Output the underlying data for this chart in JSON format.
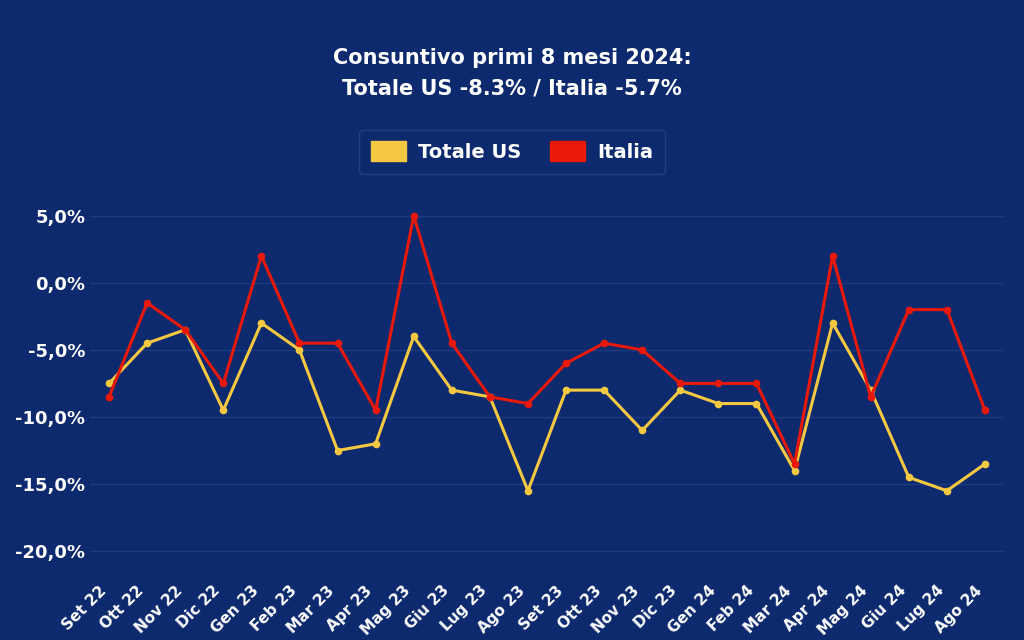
{
  "categories": [
    "Set 22",
    "Ott 22",
    "Nov 22",
    "Dic 22",
    "Gen 23",
    "Feb 23",
    "Mar 23",
    "Apr 23",
    "Mag 23",
    "Giu 23",
    "Lug 23",
    "Ago 23",
    "Set 23",
    "Ott 23",
    "Nov 23",
    "Dic 23",
    "Gen 24",
    "Feb 24",
    "Mar 24",
    "Apr 24",
    "Mag 24",
    "Giu 24",
    "Lug 24",
    "Ago 24"
  ],
  "totale_us": [
    -7.5,
    -4.5,
    -3.5,
    -9.5,
    -3.0,
    -5.0,
    -12.5,
    -12.0,
    -4.0,
    -8.0,
    -8.5,
    -15.5,
    -8.0,
    -8.0,
    -11.0,
    -8.0,
    -9.0,
    -9.0,
    -14.0,
    -3.0,
    -8.0,
    -14.5,
    -15.5,
    -13.5
  ],
  "italia": [
    -8.5,
    -1.5,
    -3.5,
    -7.5,
    2.0,
    -4.5,
    -4.5,
    -9.5,
    5.0,
    -4.5,
    -8.5,
    -9.0,
    -6.0,
    -4.5,
    -5.0,
    -7.5,
    -7.5,
    -7.5,
    -13.5,
    2.0,
    -8.5,
    -2.0,
    -2.0,
    -9.5
  ],
  "bg_color": "#0e2a6e",
  "line_color_us": "#F5C842",
  "line_color_it": "#E8190A",
  "grid_color": "#1e3a7e",
  "text_color": "#ffffff",
  "subtitle_line1": "Consuntivo primi 8 mesi 2024:",
  "subtitle_line2": "Totale US -8.3% / Italia -5.7%",
  "legend_us": "Totale US",
  "legend_it": "Italia",
  "ylim": [
    -22,
    9
  ],
  "yticks": [
    5.0,
    0.0,
    -5.0,
    -10.0,
    -15.0,
    -20.0
  ],
  "ytick_labels": [
    "5,0%",
    "0,0%",
    "-5,0%",
    "-10,0%",
    "-15,0%",
    "-20,0%"
  ]
}
